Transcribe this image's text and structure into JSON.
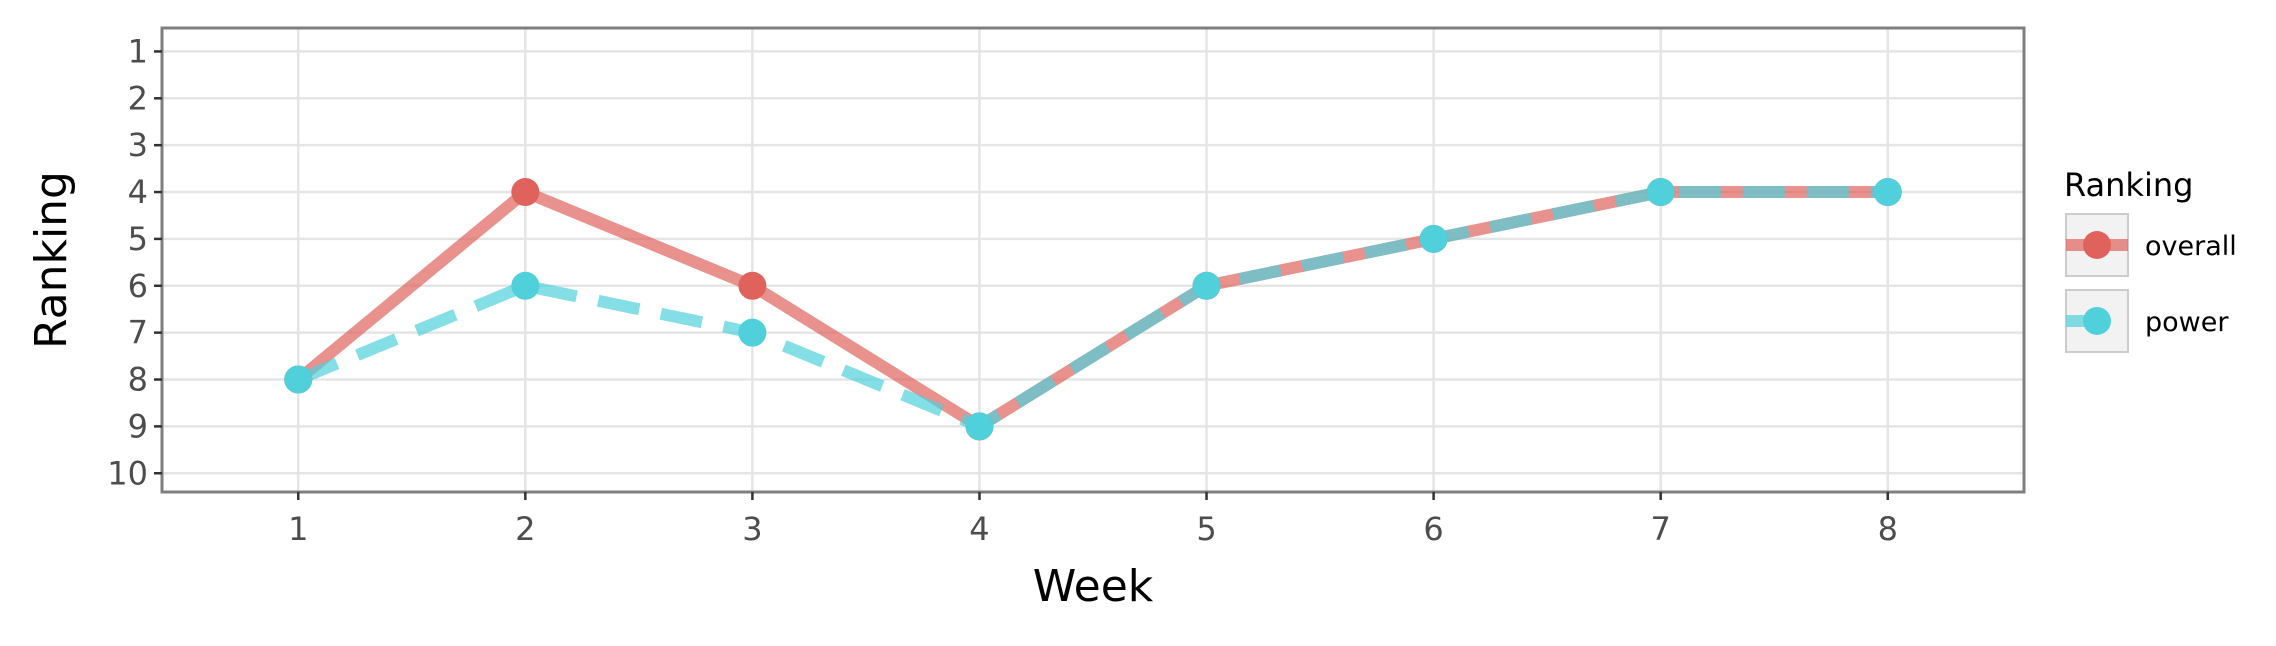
{
  "chart_data": {
    "type": "line",
    "xlabel": "Week",
    "ylabel": "Ranking",
    "x": [
      1,
      2,
      3,
      4,
      5,
      6,
      7,
      8
    ],
    "xticks": [
      "1",
      "2",
      "3",
      "4",
      "5",
      "6",
      "7",
      "8"
    ],
    "yticks": [
      "1",
      "2",
      "3",
      "4",
      "5",
      "6",
      "7",
      "8",
      "9",
      "10"
    ],
    "xlim": [
      0.4,
      8.6
    ],
    "ylim": [
      10.4,
      0.5
    ],
    "y_reversed": true,
    "grid": true,
    "legend": {
      "title": "Ranking",
      "placement": "right",
      "entries": [
        "overall",
        "power"
      ]
    },
    "series": [
      {
        "name": "overall",
        "values": [
          8,
          4,
          6,
          9,
          6,
          5,
          4,
          4
        ],
        "color": "#E0625C",
        "line_style": "solid"
      },
      {
        "name": "power",
        "values": [
          8,
          6,
          7,
          9,
          6,
          5,
          4,
          4
        ],
        "color": "#4FD0DA",
        "line_style": "dashed"
      }
    ]
  }
}
